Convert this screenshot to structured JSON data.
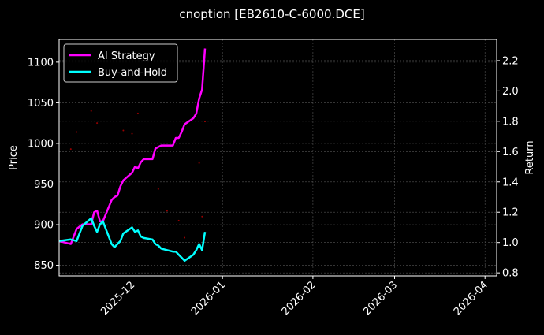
{
  "chart_data": {
    "type": "line",
    "title": "cnoption [EB2610-C-6000.DCE]",
    "xlabel": "",
    "ylabel_left": "Price",
    "ylabel_right": "Return",
    "xlim": [
      "2025-11-06",
      "2026-04-05"
    ],
    "ylim_left": [
      837,
      1128
    ],
    "ylim_right": [
      0.78,
      2.34
    ],
    "x_ticks": [
      "2025-12",
      "2026-01",
      "2026-02",
      "2026-03",
      "2026-04"
    ],
    "x_tick_dates": [
      "2025-12-01",
      "2026-01-01",
      "2026-02-01",
      "2026-03-01",
      "2026-04-01"
    ],
    "y_ticks_left": [
      850,
      900,
      950,
      1000,
      1050,
      1100
    ],
    "y_ticks_right": [
      0.8,
      1.0,
      1.2,
      1.4,
      1.6,
      1.8,
      2.0,
      2.2
    ],
    "grid": true,
    "legend_position": "top-left",
    "x": [
      "2025-11-06",
      "2025-11-10",
      "2025-11-12",
      "2025-11-14",
      "2025-11-17",
      "2025-11-18",
      "2025-11-19",
      "2025-11-20",
      "2025-11-21",
      "2025-11-24",
      "2025-11-25",
      "2025-11-26",
      "2025-11-27",
      "2025-11-28",
      "2025-12-01",
      "2025-12-02",
      "2025-12-03",
      "2025-12-04",
      "2025-12-05",
      "2025-12-08",
      "2025-12-09",
      "2025-12-10",
      "2025-12-11",
      "2025-12-15",
      "2025-12-16",
      "2025-12-17",
      "2025-12-18",
      "2025-12-19",
      "2025-12-22",
      "2025-12-23",
      "2025-12-24",
      "2025-12-25",
      "2025-12-26"
    ],
    "series": [
      {
        "name": "AI Strategy",
        "axis": "right",
        "color": "#ff00ff",
        "values": [
          1.01,
          0.99,
          1.09,
          1.12,
          1.12,
          1.2,
          1.21,
          1.14,
          1.14,
          1.28,
          1.3,
          1.31,
          1.37,
          1.41,
          1.46,
          1.5,
          1.49,
          1.53,
          1.55,
          1.55,
          1.62,
          1.63,
          1.64,
          1.64,
          1.69,
          1.69,
          1.73,
          1.78,
          1.82,
          1.85,
          1.95,
          2.01,
          2.28
        ]
      },
      {
        "name": "Buy-and-Hold",
        "axis": "right",
        "color": "#00ffff",
        "values": [
          1.01,
          1.02,
          1.01,
          1.11,
          1.16,
          1.11,
          1.07,
          1.12,
          1.14,
          0.99,
          0.97,
          0.99,
          1.01,
          1.06,
          1.1,
          1.07,
          1.08,
          1.04,
          1.03,
          1.02,
          0.99,
          0.98,
          0.96,
          0.94,
          0.94,
          0.92,
          0.9,
          0.88,
          0.92,
          0.95,
          0.99,
          0.95,
          1.07
        ]
      }
    ],
    "price_points": {
      "axis": "left",
      "color": "#ff0000",
      "x": [
        "2025-11-10",
        "2025-11-12",
        "2025-11-17",
        "2025-11-19",
        "2025-11-28",
        "2025-12-01",
        "2025-12-03",
        "2025-12-10",
        "2025-12-13",
        "2025-12-17",
        "2025-12-19",
        "2025-12-24",
        "2025-12-26",
        "2025-12-25"
      ],
      "values": [
        993,
        1014,
        1040,
        1025,
        1016,
        1012,
        1037,
        944,
        917,
        905,
        884,
        976,
        1027,
        910
      ]
    }
  }
}
